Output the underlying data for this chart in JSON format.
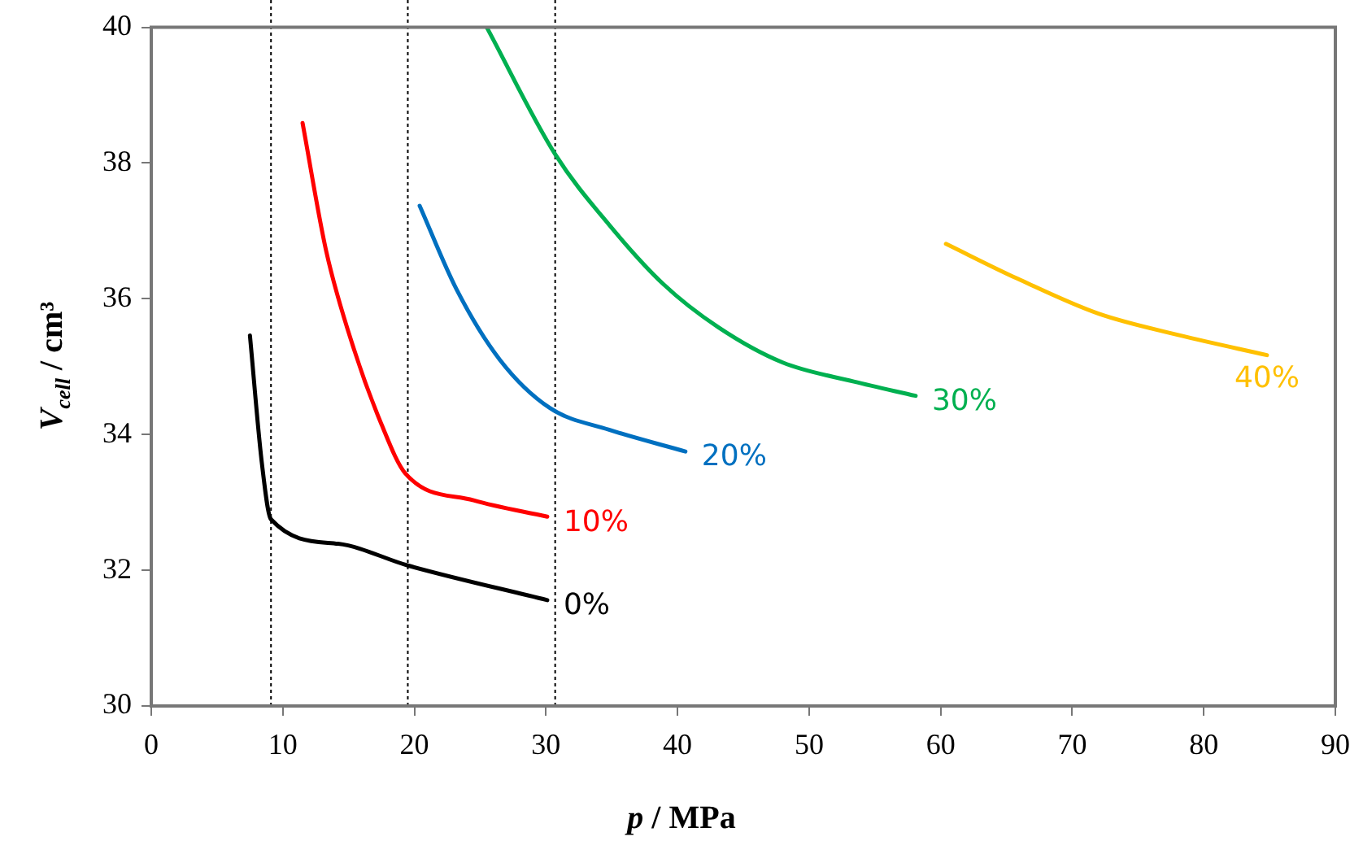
{
  "chart_data": {
    "type": "line",
    "xlabel": "p / MPa",
    "ylabel": "V$_{cell}$ / cm³",
    "xlim": [
      0,
      90
    ],
    "xticks": [
      0,
      10,
      20,
      30,
      40,
      50,
      60,
      70,
      80,
      90
    ],
    "ylim": [
      30,
      40
    ],
    "yticks": [
      30,
      32,
      34,
      36,
      38,
      40
    ],
    "grid": false,
    "legend": false,
    "marker": "none",
    "line_style": "solid",
    "series": [
      {
        "name": "0%",
        "color": "#000000",
        "x": [
          7.5,
          8.4,
          9.1,
          14.2,
          19.5,
          30.1
        ],
        "values": [
          35.46,
          33.59,
          32.75,
          32.39,
          32.07,
          31.56
        ]
      },
      {
        "name": "10%",
        "color": "#ff0000",
        "x": [
          11.5,
          13.3,
          15.4,
          17.5,
          19.3,
          24.5,
          30.1
        ],
        "values": [
          38.59,
          36.7,
          35.26,
          34.15,
          33.43,
          33.03,
          32.79
        ]
      },
      {
        "name": "20%",
        "color": "#0070c0",
        "x": [
          20.4,
          23.2,
          26.5,
          30.3,
          34.8,
          40.6
        ],
        "values": [
          37.37,
          36.14,
          35.1,
          34.39,
          34.07,
          33.75
        ]
      },
      {
        "name": "30%",
        "color": "#00b050",
        "x": [
          25.5,
          30.7,
          34.8,
          38.9,
          43.1,
          48.0,
          53.4,
          58.1
        ],
        "values": [
          40.0,
          38.13,
          37.09,
          36.22,
          35.58,
          35.06,
          34.78,
          34.57
        ]
      },
      {
        "name": "40%",
        "color": "#ffc000",
        "x": [
          60.4,
          65.8,
          72.0,
          78.2,
          84.8
        ],
        "values": [
          36.81,
          36.3,
          35.78,
          35.46,
          35.17
        ]
      }
    ],
    "ref_lines": [
      {
        "axis": "x",
        "value": 9.1,
        "label": null,
        "color": "#000000",
        "line_style": "dotted"
      },
      {
        "axis": "x",
        "value": 19.5,
        "label": null,
        "color": "#000000",
        "line_style": "dotted"
      },
      {
        "axis": "x",
        "value": 30.7,
        "label": null,
        "color": "#000000",
        "line_style": "dotted"
      }
    ]
  }
}
